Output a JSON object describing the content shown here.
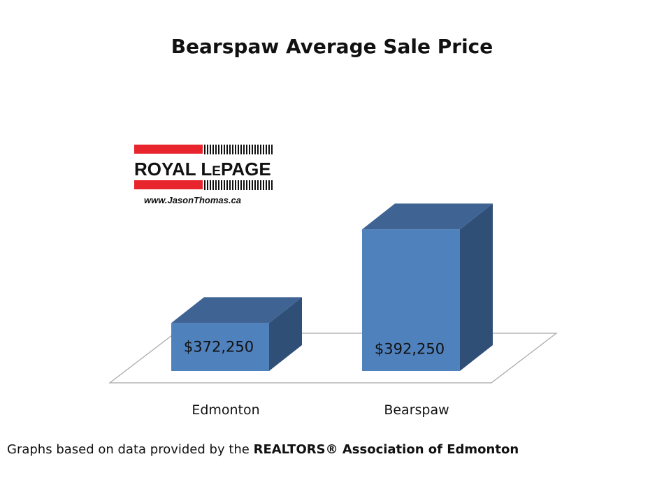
{
  "chart_data": {
    "type": "bar",
    "title": "Bearspaw Average Sale Price",
    "categories": [
      "Edmonton",
      "Bearspaw"
    ],
    "values": [
      372250,
      392250
    ],
    "data_labels": [
      "$372,250",
      "$392,250"
    ],
    "ylim": [
      360000,
      400000
    ],
    "grid": false,
    "legend": "none",
    "colors": {
      "front": "#4f81bd",
      "top": "#3f6393",
      "side": "#2f4f77",
      "floor_line": "#a6a6a6"
    }
  },
  "logo": {
    "brand": "ROYAL LEPAGE",
    "brand_royal": "ROYAL L",
    "brand_e": "E",
    "brand_page": "PAGE",
    "url": "www.JasonThomas.ca",
    "red": "#e8252d"
  },
  "footer": {
    "prefix": "Graphs based on data provided by the ",
    "source": "REALTORS® Association of Edmonton"
  }
}
